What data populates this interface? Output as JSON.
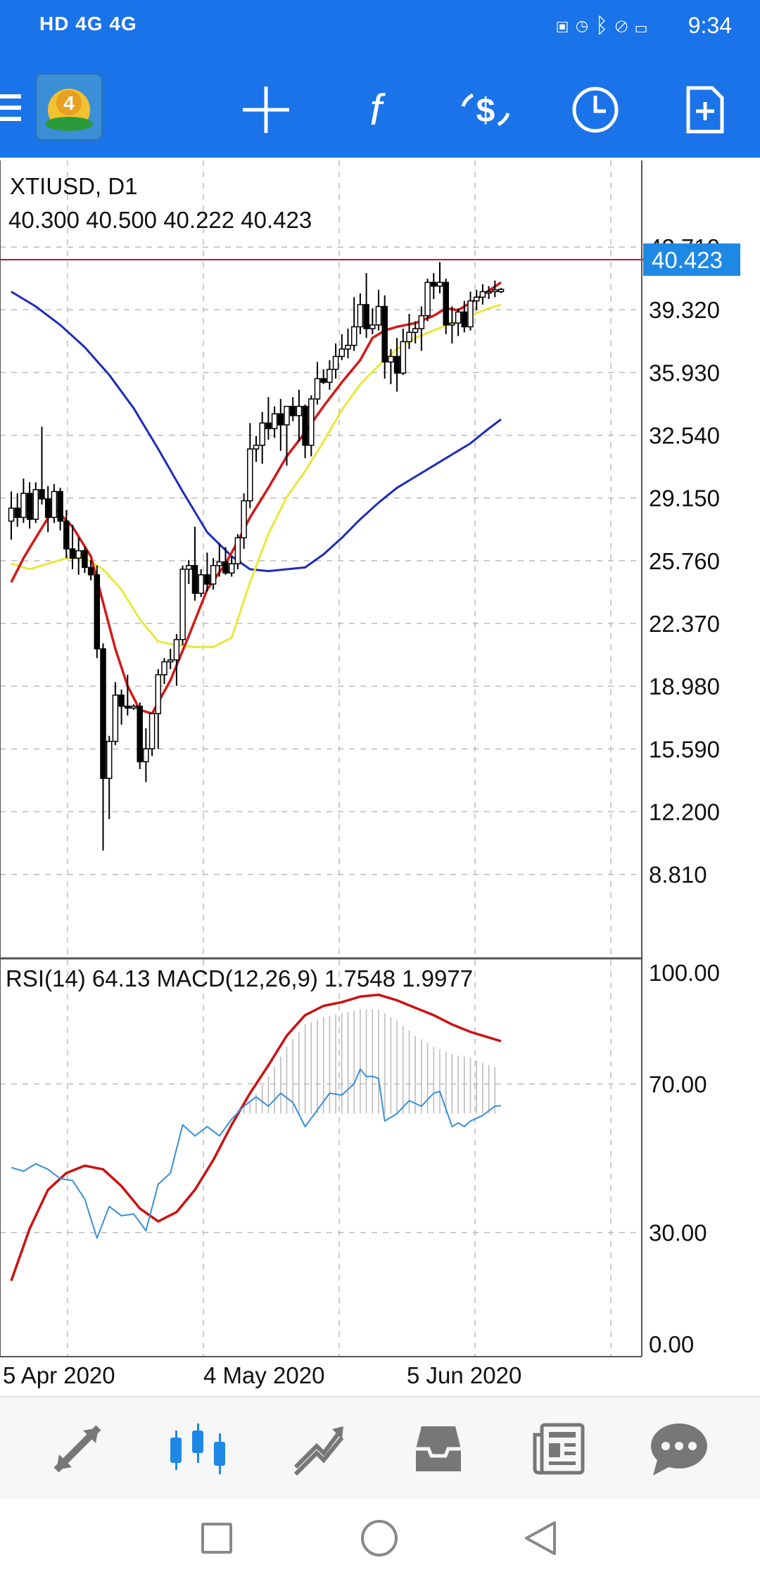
{
  "status_bar": {
    "left_text": "HD 4G 4G",
    "time": "9:34"
  },
  "toolbar": {
    "icons": [
      "menu-icon",
      "metatrader-logo",
      "crosshair-icon",
      "indicators-icon",
      "trade-icon",
      "timeframe-icon",
      "new-order-icon"
    ]
  },
  "chart": {
    "symbol_label": "XTIUSD, D1",
    "ohlc_label": "40.300 40.500 40.222 40.423",
    "current_price": "40.423",
    "price_ticks": [
      "42.710",
      "39.320",
      "35.930",
      "32.540",
      "29.150",
      "25.760",
      "22.370",
      "18.980",
      "15.590",
      "12.200",
      "8.810"
    ],
    "indicator_label": "RSI(14) 64.13 MACD(12,26,9) 1.7548 1.9977",
    "indicator_ticks": [
      "100.00",
      "70.00",
      "30.00",
      "0.00"
    ],
    "date_labels": [
      "5 Apr 2020",
      "4 May 2020",
      "5 Jun 2020"
    ],
    "colors": {
      "candle": "#000000",
      "ma_fast": "#d11a1a",
      "ma_mid": "#e8e83a",
      "ma_slow": "#1f2bb8",
      "price_line": "#c0103a",
      "price_badge": "#1e88e5",
      "rsi": "#3a8fd6",
      "macd_signal": "#cc1111",
      "macd_hist": "#b8b8b8"
    }
  },
  "chart_data": {
    "type": "candlestick",
    "ylim": [
      8.0,
      44.5
    ],
    "candles": [
      [
        27.9,
        29.5,
        26.9,
        28.6
      ],
      [
        28.6,
        29.4,
        27.6,
        28.1
      ],
      [
        28.1,
        30.2,
        27.8,
        29.4
      ],
      [
        29.4,
        30.0,
        27.5,
        28.0
      ],
      [
        28.0,
        30.0,
        27.8,
        29.6
      ],
      [
        29.6,
        33.0,
        28.8,
        29.1
      ],
      [
        29.1,
        29.8,
        27.3,
        28.1
      ],
      [
        28.1,
        29.9,
        27.8,
        29.5
      ],
      [
        29.5,
        29.7,
        27.4,
        27.9
      ],
      [
        27.9,
        28.5,
        25.9,
        26.4
      ],
      [
        26.4,
        27.7,
        25.3,
        25.9
      ],
      [
        25.9,
        27.0,
        25.0,
        26.3
      ],
      [
        26.3,
        26.5,
        25.1,
        25.4
      ],
      [
        25.4,
        25.8,
        24.7,
        25.0
      ],
      [
        25.0,
        25.5,
        20.5,
        21.0
      ],
      [
        21.0,
        21.3,
        10.1,
        14.0
      ],
      [
        14.0,
        16.3,
        11.8,
        16.0
      ],
      [
        16.0,
        19.2,
        15.8,
        18.5
      ],
      [
        18.5,
        18.8,
        16.9,
        17.9
      ],
      [
        17.9,
        19.6,
        17.4,
        17.8
      ],
      [
        17.8,
        18.0,
        17.7,
        17.9
      ],
      [
        17.9,
        18.1,
        14.5,
        14.9
      ],
      [
        14.9,
        16.7,
        13.8,
        15.6
      ],
      [
        15.6,
        17.5,
        15.2,
        17.5
      ],
      [
        17.5,
        19.9,
        15.6,
        19.6
      ],
      [
        19.6,
        20.5,
        19.1,
        20.3
      ],
      [
        20.3,
        21.0,
        19.9,
        20.4
      ],
      [
        20.4,
        21.8,
        19.0,
        21.5
      ],
      [
        21.5,
        25.5,
        21.2,
        25.3
      ],
      [
        25.3,
        25.8,
        24.5,
        25.5
      ],
      [
        25.5,
        27.6,
        23.6,
        24.0
      ],
      [
        24.0,
        25.3,
        23.8,
        25.0
      ],
      [
        25.0,
        26.2,
        24.1,
        24.5
      ],
      [
        24.5,
        25.9,
        24.2,
        25.5
      ],
      [
        25.5,
        26.7,
        24.9,
        25.7
      ],
      [
        25.7,
        26.5,
        25.0,
        25.1
      ],
      [
        25.1,
        26.0,
        24.9,
        25.6
      ],
      [
        25.6,
        27.2,
        25.3,
        27.0
      ],
      [
        27.0,
        29.4,
        26.4,
        29.0
      ],
      [
        29.0,
        33.2,
        28.6,
        31.8
      ],
      [
        31.8,
        32.5,
        31.1,
        32.0
      ],
      [
        32.0,
        33.8,
        31.0,
        33.2
      ],
      [
        33.2,
        34.6,
        32.3,
        32.9
      ],
      [
        32.9,
        34.1,
        32.4,
        33.7
      ],
      [
        33.7,
        34.5,
        31.7,
        33.1
      ],
      [
        33.1,
        34.0,
        30.9,
        34.1
      ],
      [
        34.1,
        34.6,
        33.3,
        33.6
      ],
      [
        33.6,
        35.0,
        32.2,
        34.1
      ],
      [
        34.1,
        34.2,
        31.3,
        32.0
      ],
      [
        32.0,
        34.7,
        31.4,
        34.5
      ],
      [
        34.5,
        36.5,
        34.2,
        35.6
      ],
      [
        35.6,
        36.1,
        35.3,
        35.4
      ],
      [
        35.4,
        36.6,
        35.0,
        36.1
      ],
      [
        36.1,
        37.5,
        35.6,
        36.8
      ],
      [
        36.8,
        38.0,
        36.6,
        37.2
      ],
      [
        37.2,
        38.3,
        36.7,
        37.4
      ],
      [
        37.4,
        40.0,
        37.1,
        38.4
      ],
      [
        38.4,
        40.2,
        38.0,
        39.6
      ],
      [
        39.6,
        41.3,
        37.8,
        38.3
      ],
      [
        38.3,
        39.4,
        38.0,
        38.5
      ],
      [
        38.5,
        40.4,
        38.2,
        39.5
      ],
      [
        39.5,
        40.1,
        35.6,
        36.5
      ],
      [
        36.5,
        37.2,
        35.3,
        36.8
      ],
      [
        36.8,
        37.8,
        34.9,
        35.9
      ],
      [
        35.9,
        38.3,
        35.8,
        37.6
      ],
      [
        37.6,
        39.1,
        37.2,
        38.1
      ],
      [
        38.1,
        38.7,
        37.5,
        38.3
      ],
      [
        38.3,
        39.5,
        37.1,
        39.0
      ],
      [
        39.0,
        41.0,
        38.7,
        40.8
      ],
      [
        40.8,
        41.3,
        39.9,
        40.6
      ],
      [
        40.6,
        41.9,
        40.2,
        40.8
      ],
      [
        40.8,
        41.0,
        38.0,
        38.5
      ],
      [
        38.5,
        39.5,
        37.5,
        38.6
      ],
      [
        38.6,
        39.4,
        37.9,
        39.2
      ],
      [
        39.2,
        39.8,
        38.1,
        38.4
      ],
      [
        38.4,
        40.3,
        38.2,
        39.8
      ],
      [
        39.8,
        40.4,
        39.3,
        40.0
      ],
      [
        40.0,
        40.7,
        39.6,
        40.3
      ],
      [
        40.3,
        40.6,
        39.9,
        40.3
      ],
      [
        40.3,
        40.9,
        40.0,
        40.4
      ],
      [
        40.3,
        40.5,
        40.222,
        40.423
      ]
    ],
    "ma_fast": [
      [
        0,
        24.6
      ],
      [
        2,
        25.9
      ],
      [
        4,
        27.0
      ],
      [
        7,
        28.6
      ],
      [
        10,
        27.6
      ],
      [
        13,
        26.0
      ],
      [
        15,
        23.5
      ],
      [
        17,
        21.0
      ],
      [
        19,
        19.0
      ],
      [
        21,
        17.7
      ],
      [
        23,
        17.5
      ],
      [
        26,
        19.3
      ],
      [
        29,
        21.7
      ],
      [
        32,
        24.2
      ],
      [
        35,
        25.6
      ],
      [
        37,
        26.8
      ],
      [
        39,
        28.1
      ],
      [
        42,
        29.7
      ],
      [
        45,
        31.4
      ],
      [
        48,
        32.7
      ],
      [
        51,
        34.1
      ],
      [
        54,
        35.4
      ],
      [
        57,
        36.6
      ],
      [
        59,
        37.8
      ],
      [
        61,
        38.2
      ],
      [
        63,
        38.4
      ],
      [
        66,
        38.6
      ],
      [
        69,
        39.0
      ],
      [
        71,
        39.4
      ],
      [
        73,
        39.3
      ],
      [
        76,
        39.9
      ],
      [
        80,
        40.8
      ]
    ],
    "ma_mid": [
      [
        0,
        25.6
      ],
      [
        3,
        25.3
      ],
      [
        6,
        25.6
      ],
      [
        9,
        25.9
      ],
      [
        12,
        25.9
      ],
      [
        15,
        25.3
      ],
      [
        18,
        24.2
      ],
      [
        21,
        22.6
      ],
      [
        24,
        21.4
      ],
      [
        27,
        21.2
      ],
      [
        30,
        21.1
      ],
      [
        33,
        21.1
      ],
      [
        36,
        21.6
      ],
      [
        39,
        24.6
      ],
      [
        42,
        27.2
      ],
      [
        45,
        29.2
      ],
      [
        48,
        30.6
      ],
      [
        51,
        32.2
      ],
      [
        54,
        33.9
      ],
      [
        57,
        35.3
      ],
      [
        60,
        36.3
      ],
      [
        63,
        37.2
      ],
      [
        66,
        37.8
      ],
      [
        69,
        38.2
      ],
      [
        72,
        38.6
      ],
      [
        75,
        39.0
      ],
      [
        78,
        39.4
      ],
      [
        80,
        39.6
      ]
    ],
    "ma_slow": [
      [
        0,
        40.3
      ],
      [
        4,
        39.5
      ],
      [
        8,
        38.5
      ],
      [
        12,
        37.3
      ],
      [
        16,
        35.8
      ],
      [
        20,
        34.0
      ],
      [
        24,
        31.8
      ],
      [
        28,
        29.5
      ],
      [
        32,
        27.3
      ],
      [
        36,
        26.0
      ],
      [
        39,
        25.3
      ],
      [
        42,
        25.2
      ],
      [
        45,
        25.3
      ],
      [
        48,
        25.4
      ],
      [
        51,
        26.1
      ],
      [
        54,
        27.0
      ],
      [
        57,
        28.0
      ],
      [
        60,
        28.9
      ],
      [
        63,
        29.7
      ],
      [
        66,
        30.3
      ],
      [
        69,
        30.9
      ],
      [
        72,
        31.5
      ],
      [
        75,
        32.1
      ],
      [
        78,
        32.9
      ],
      [
        80,
        33.4
      ]
    ],
    "rsi": [
      [
        0,
        47.5
      ],
      [
        2,
        46.5
      ],
      [
        4,
        48.5
      ],
      [
        6,
        47.0
      ],
      [
        8,
        44.5
      ],
      [
        10,
        44.0
      ],
      [
        12,
        39.0
      ],
      [
        14,
        28.5
      ],
      [
        16,
        37.0
      ],
      [
        18,
        34.5
      ],
      [
        20,
        35.0
      ],
      [
        22,
        30.5
      ],
      [
        24,
        43.0
      ],
      [
        26,
        46.0
      ],
      [
        28,
        59.0
      ],
      [
        30,
        56.0
      ],
      [
        32,
        58.5
      ],
      [
        34,
        56.0
      ],
      [
        36,
        60.5
      ],
      [
        38,
        64.0
      ],
      [
        40,
        66.5
      ],
      [
        42,
        64.0
      ],
      [
        44,
        67.5
      ],
      [
        46,
        65.0
      ],
      [
        48,
        58.5
      ],
      [
        50,
        63.0
      ],
      [
        52,
        67.5
      ],
      [
        54,
        67.0
      ],
      [
        56,
        70.0
      ],
      [
        57,
        74.0
      ],
      [
        58,
        72.0
      ],
      [
        59,
        72.0
      ],
      [
        60,
        71.5
      ],
      [
        61,
        60.0
      ],
      [
        63,
        62.0
      ],
      [
        65,
        65.5
      ],
      [
        67,
        64.0
      ],
      [
        69,
        67.5
      ],
      [
        70,
        68.0
      ],
      [
        72,
        58.5
      ],
      [
        73,
        59.5
      ],
      [
        74,
        58.5
      ],
      [
        75,
        60.0
      ],
      [
        77,
        61.5
      ],
      [
        79,
        64.0
      ],
      [
        80,
        64.13
      ]
    ],
    "macd_signal": [
      [
        0,
        17.0
      ],
      [
        3,
        31.0
      ],
      [
        6,
        41.5
      ],
      [
        9,
        46.0
      ],
      [
        12,
        48.0
      ],
      [
        15,
        47.0
      ],
      [
        18,
        42.5
      ],
      [
        21,
        36.5
      ],
      [
        24,
        33.0
      ],
      [
        27,
        35.5
      ],
      [
        30,
        41.5
      ],
      [
        33,
        49.5
      ],
      [
        36,
        59.0
      ],
      [
        39,
        67.5
      ],
      [
        42,
        75.0
      ],
      [
        45,
        83.0
      ],
      [
        48,
        88.5
      ],
      [
        51,
        91.0
      ],
      [
        54,
        92.0
      ],
      [
        57,
        93.5
      ],
      [
        60,
        94.0
      ],
      [
        63,
        92.5
      ],
      [
        66,
        90.5
      ],
      [
        69,
        88.5
      ],
      [
        72,
        86.0
      ],
      [
        75,
        84.0
      ],
      [
        78,
        82.5
      ],
      [
        80,
        81.5
      ]
    ],
    "macd_hist": [
      [
        0,
        62
      ],
      [
        3,
        62
      ],
      [
        6,
        62
      ],
      [
        9,
        62
      ],
      [
        12,
        62
      ],
      [
        15,
        62
      ],
      [
        18,
        62
      ],
      [
        21,
        62
      ],
      [
        24,
        62
      ],
      [
        27,
        62
      ],
      [
        30,
        62
      ],
      [
        33,
        62
      ],
      [
        36,
        62
      ],
      [
        39,
        65
      ],
      [
        42,
        72
      ],
      [
        45,
        80
      ],
      [
        48,
        86
      ],
      [
        51,
        88
      ],
      [
        54,
        89
      ],
      [
        57,
        90
      ],
      [
        60,
        90
      ],
      [
        63,
        87
      ],
      [
        66,
        83
      ],
      [
        69,
        80
      ],
      [
        72,
        78
      ],
      [
        75,
        77
      ],
      [
        78,
        75
      ],
      [
        80,
        74
      ]
    ]
  },
  "bottom_nav": {
    "items": [
      "quotes-icon",
      "chart-icon",
      "trade-icon",
      "history-icon",
      "news-icon",
      "messages-icon"
    ]
  }
}
